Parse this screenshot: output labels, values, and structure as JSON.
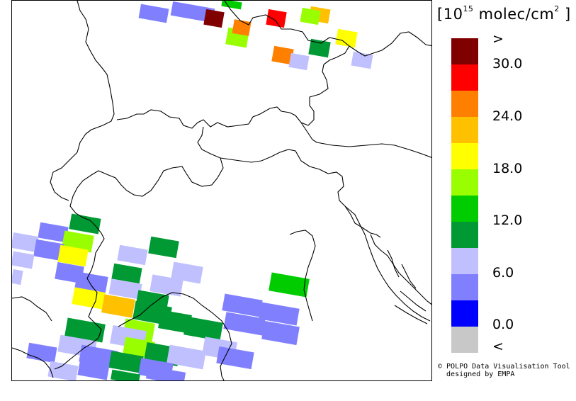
{
  "legend": {
    "unit_open": "[",
    "unit_pow_base": "10",
    "unit_pow_exp": "15",
    "unit_rest": " molec/cm",
    "unit_sq": "2",
    "unit_close": " ]",
    "colors": [
      "#800000",
      "#ff0000",
      "#ff8000",
      "#ffc000",
      "#ffff00",
      "#99ff00",
      "#00cc00",
      "#009933",
      "#c0c0ff",
      "#8080ff",
      "#0000ff",
      "#c8c8c8"
    ],
    "labels": [
      ">",
      "30.0",
      "24.0",
      "18.0",
      "12.0",
      "6.0",
      "0.0",
      "<"
    ]
  },
  "credit": {
    "line1": "© POLPO Data Visualisation Tool",
    "line2": "  designed by EMPA"
  },
  "map": {
    "region": "Alps / Northern Italy",
    "pixels": [
      {
        "color_index": 9
      },
      {
        "color_index": 9
      },
      {
        "color_index": 0
      },
      {
        "color_index": 6
      },
      {
        "color_index": 1
      },
      {
        "color_index": 5
      },
      {
        "color_index": 2
      },
      {
        "color_index": 3
      },
      {
        "color_index": 4
      },
      {
        "color_index": 5
      },
      {
        "color_index": 7
      },
      {
        "color_index": 2
      },
      {
        "color_index": 8
      },
      {
        "color_index": 8
      },
      {
        "color_index": 7
      },
      {
        "color_index": 9
      },
      {
        "color_index": 5
      },
      {
        "color_index": 8
      },
      {
        "color_index": 9
      },
      {
        "color_index": 4
      },
      {
        "color_index": 8
      },
      {
        "color_index": 7
      },
      {
        "color_index": 8
      },
      {
        "color_index": 9
      },
      {
        "color_index": 7
      },
      {
        "color_index": 8
      },
      {
        "color_index": 8
      },
      {
        "color_index": 9
      },
      {
        "color_index": 6
      },
      {
        "color_index": 8
      },
      {
        "color_index": 4
      },
      {
        "color_index": 3
      },
      {
        "color_index": 7
      },
      {
        "color_index": 7
      },
      {
        "color_index": 8
      },
      {
        "color_index": 9
      },
      {
        "color_index": 9
      },
      {
        "color_index": 7
      },
      {
        "color_index": 5
      },
      {
        "color_index": 7
      },
      {
        "color_index": 8
      },
      {
        "color_index": 9
      },
      {
        "color_index": 7
      },
      {
        "color_index": 9
      },
      {
        "color_index": 8
      },
      {
        "color_index": 5
      },
      {
        "color_index": 7
      },
      {
        "color_index": 8
      },
      {
        "color_index": 9
      },
      {
        "color_index": 9
      },
      {
        "color_index": 9
      },
      {
        "color_index": 8
      },
      {
        "color_index": 7
      },
      {
        "color_index": 9
      },
      {
        "color_index": 9
      },
      {
        "color_index": 8
      },
      {
        "color_index": 7
      },
      {
        "color_index": 9
      }
    ]
  }
}
